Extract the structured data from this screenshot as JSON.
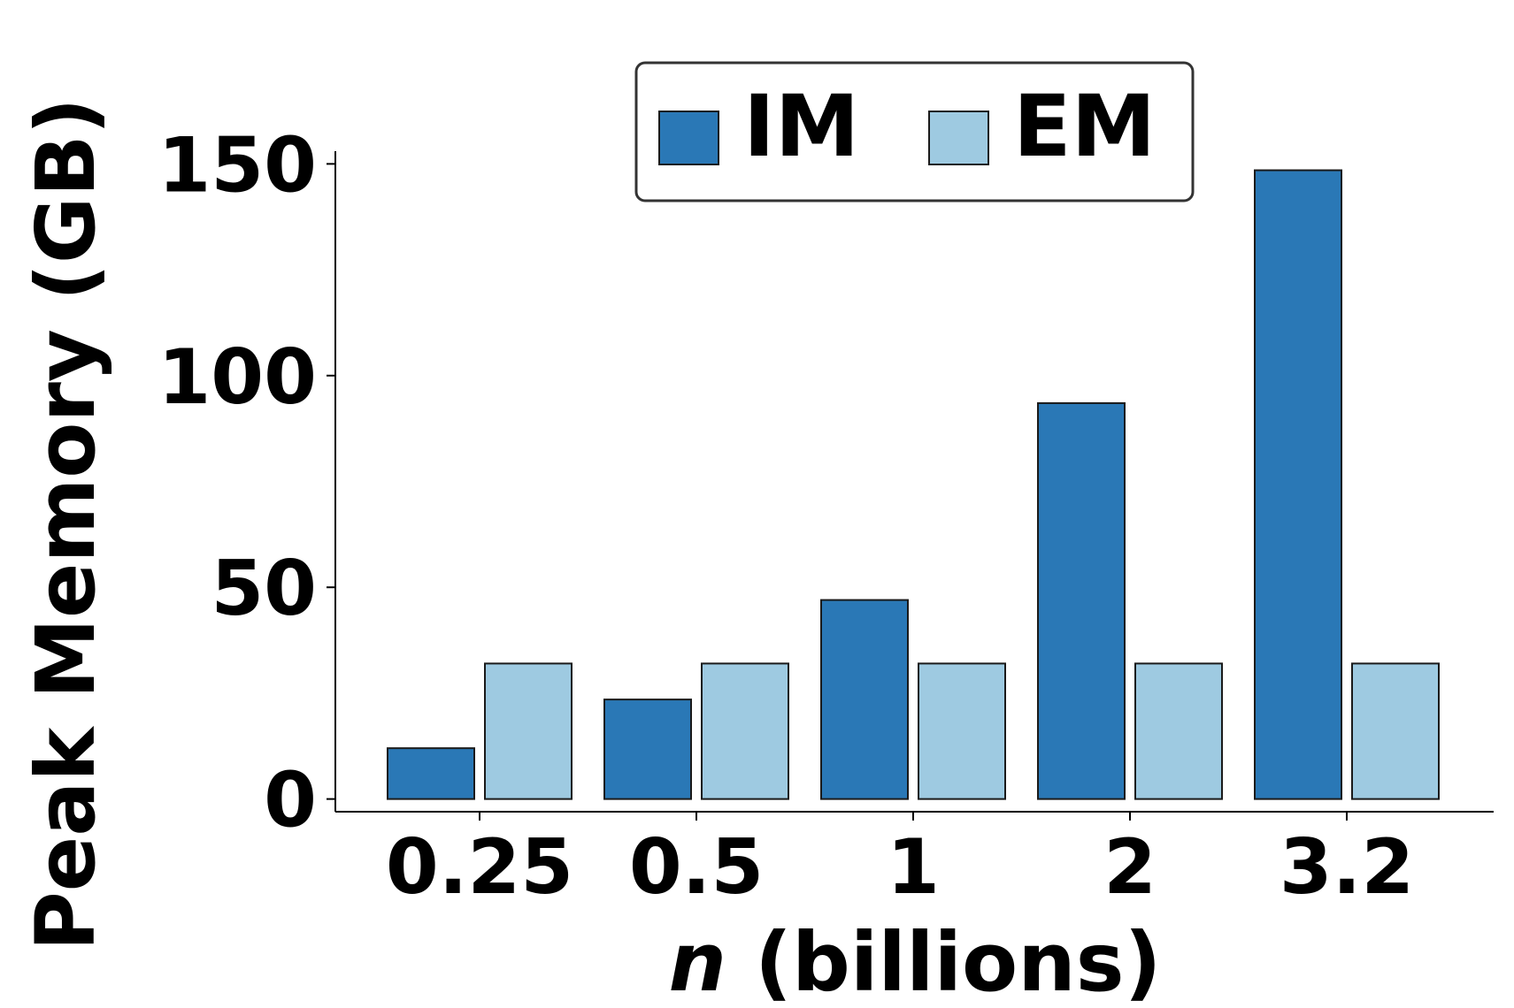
{
  "chart_data": {
    "type": "bar",
    "categories": [
      "0.25",
      "0.5",
      "1",
      "2",
      "3.2"
    ],
    "series": [
      {
        "name": "IM",
        "values": [
          12,
          23.5,
          47,
          93.5,
          148.5
        ]
      },
      {
        "name": "EM",
        "values": [
          32,
          32,
          32,
          32,
          32
        ]
      }
    ],
    "colors": {
      "IM": "#2a78b6",
      "EM": "#9ecae1"
    },
    "xlabel_var": "n",
    "xlabel_rest": " (billions)",
    "ylabel": "Peak Memory (GB)",
    "yticks": [
      0,
      50,
      100,
      150
    ],
    "ylim": [
      -3,
      153
    ],
    "grid": false,
    "legend_position": "top-center"
  }
}
